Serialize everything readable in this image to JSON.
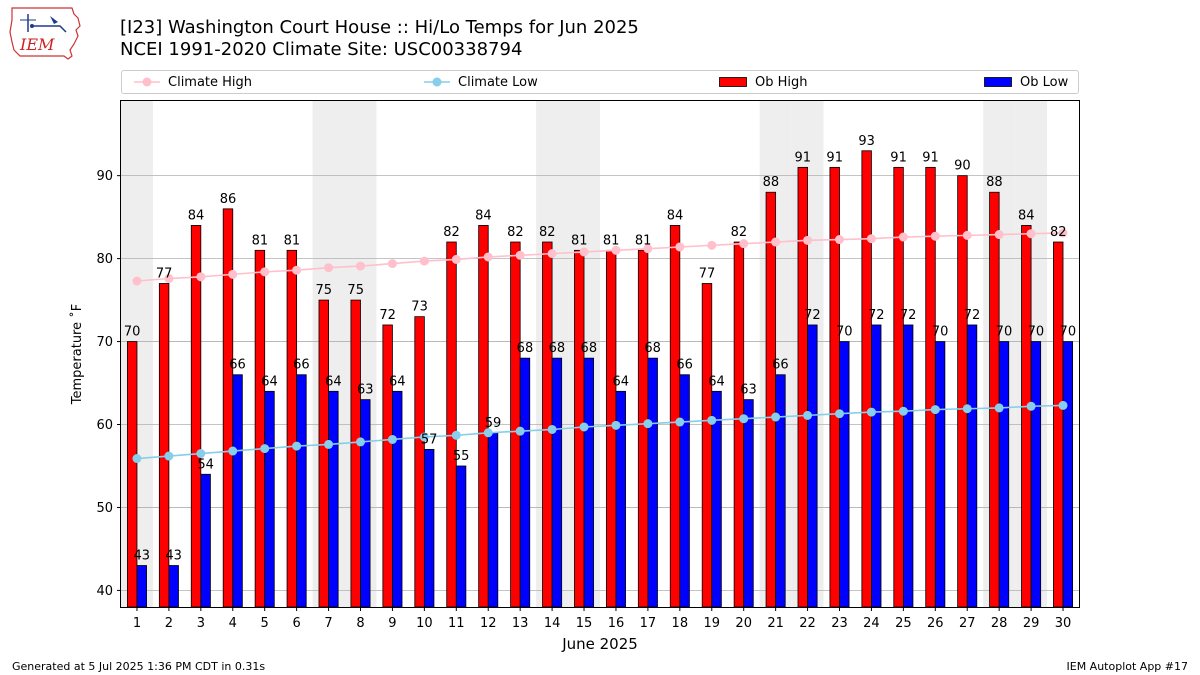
{
  "header": {
    "title_line1": "[I23] Washington Court House :: Hi/Lo Temps for Jun 2025",
    "title_line2": "NCEI 1991-2020 Climate Site: USC00338794",
    "logo_text": "IEM"
  },
  "footer": {
    "left": "Generated at 5 Jul 2025 1:36 PM CDT in 0.31s",
    "right": "IEM Autoplot App #17"
  },
  "legend": {
    "placement": "top",
    "items": [
      {
        "label": "Climate High",
        "color": "#ffc0cb",
        "kind": "line-marker"
      },
      {
        "label": "Climate Low",
        "color": "#87ceeb",
        "kind": "line-marker"
      },
      {
        "label": "Ob High",
        "color": "#ff0000",
        "kind": "bar"
      },
      {
        "label": "Ob Low",
        "color": "#0000ff",
        "kind": "bar"
      }
    ]
  },
  "chart_data": {
    "type": "bar",
    "xlabel": "June 2025",
    "ylabel": "Temperature ˚F",
    "categories": [
      "1",
      "2",
      "3",
      "4",
      "5",
      "6",
      "7",
      "8",
      "9",
      "10",
      "11",
      "12",
      "13",
      "14",
      "15",
      "16",
      "17",
      "18",
      "19",
      "20",
      "21",
      "22",
      "23",
      "24",
      "25",
      "26",
      "27",
      "28",
      "29",
      "30"
    ],
    "ylim": [
      38,
      99
    ],
    "yticks": [
      40,
      50,
      60,
      70,
      80,
      90
    ],
    "grid": true,
    "weekend_shading": [
      1,
      7,
      8,
      14,
      15,
      21,
      22,
      28,
      29
    ],
    "series": [
      {
        "name": "Ob High",
        "kind": "bar",
        "color": "#ff0000",
        "values": [
          70,
          77,
          84,
          86,
          81,
          81,
          75,
          75,
          72,
          73,
          82,
          84,
          82,
          82,
          81,
          81,
          81,
          84,
          77,
          82,
          88,
          91,
          91,
          93,
          91,
          91,
          90,
          88,
          84,
          82
        ]
      },
      {
        "name": "Ob Low",
        "kind": "bar",
        "color": "#0000ff",
        "values": [
          43,
          43,
          54,
          66,
          64,
          66,
          64,
          63,
          64,
          57,
          55,
          59,
          68,
          68,
          68,
          64,
          68,
          66,
          64,
          63,
          66,
          72,
          70,
          72,
          72,
          70,
          72,
          70,
          70,
          70
        ]
      },
      {
        "name": "Climate High",
        "kind": "line",
        "color": "#ffc0cb",
        "values": [
          77.3,
          77.6,
          77.8,
          78.1,
          78.4,
          78.6,
          78.9,
          79.1,
          79.4,
          79.7,
          79.9,
          80.2,
          80.4,
          80.6,
          80.8,
          81.0,
          81.2,
          81.4,
          81.6,
          81.8,
          82.0,
          82.2,
          82.3,
          82.4,
          82.6,
          82.7,
          82.8,
          82.9,
          83.0,
          83.1
        ]
      },
      {
        "name": "Climate Low",
        "kind": "line",
        "color": "#87ceeb",
        "values": [
          55.9,
          56.2,
          56.5,
          56.8,
          57.1,
          57.4,
          57.6,
          57.9,
          58.2,
          58.5,
          58.7,
          59.0,
          59.2,
          59.4,
          59.7,
          59.9,
          60.1,
          60.3,
          60.5,
          60.7,
          60.9,
          61.1,
          61.3,
          61.5,
          61.6,
          61.8,
          61.9,
          62.0,
          62.2,
          62.3
        ]
      }
    ]
  }
}
